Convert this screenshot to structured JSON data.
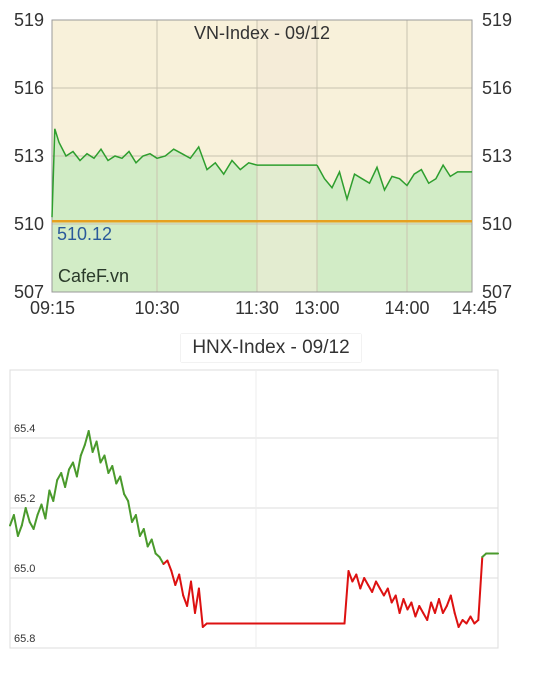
{
  "chart_data": [
    {
      "type": "line",
      "title": "VN-Index - 09/12",
      "watermark": "CafeF.vn",
      "reference_label": "510.12",
      "reference_value": 510.12,
      "x_ticks": [
        "09:15",
        "10:30",
        "11:30",
        "13:00",
        "14:00",
        "14:45"
      ],
      "y_ticks": [
        "507",
        "510",
        "513",
        "516",
        "519"
      ],
      "ylim": [
        507,
        519
      ],
      "grid": true,
      "colors": {
        "line": "#2e9e2e",
        "fill": "#d2ecc6",
        "plot_bg": "#f8f1da",
        "break_bg": "#f5ecd8",
        "reference": "#e6a020"
      },
      "series": [
        {
          "segment": "morning",
          "x": [
            "09:15",
            "09:17",
            "09:20",
            "09:25",
            "09:30",
            "09:35",
            "09:40",
            "09:45",
            "09:50",
            "09:55",
            "10:00",
            "10:05",
            "10:10",
            "10:15",
            "10:20",
            "10:25",
            "10:30",
            "10:35",
            "10:40",
            "10:45",
            "10:50",
            "10:55",
            "11:00",
            "11:05",
            "11:10",
            "11:15",
            "11:20",
            "11:25",
            "11:30"
          ],
          "y": [
            510.3,
            514.2,
            513.6,
            513.0,
            513.2,
            512.8,
            513.1,
            512.9,
            513.3,
            512.8,
            513.0,
            512.9,
            513.2,
            512.7,
            513.0,
            513.1,
            512.9,
            513.0,
            513.3,
            513.1,
            512.9,
            513.4,
            512.4,
            512.7,
            512.2,
            512.8,
            512.4,
            512.7,
            512.6
          ]
        },
        {
          "segment": "afternoon",
          "x": [
            "13:00",
            "13:05",
            "13:10",
            "13:15",
            "13:20",
            "13:25",
            "13:30",
            "13:35",
            "13:40",
            "13:45",
            "13:50",
            "13:55",
            "14:00",
            "14:05",
            "14:10",
            "14:15",
            "14:20",
            "14:25",
            "14:30",
            "14:35",
            "14:40",
            "14:45"
          ],
          "y": [
            512.6,
            512.0,
            511.6,
            512.3,
            511.1,
            512.2,
            512.0,
            511.8,
            512.5,
            511.5,
            512.1,
            512.0,
            511.7,
            512.2,
            512.4,
            511.8,
            512.0,
            512.6,
            512.1,
            512.3,
            512.3,
            512.3
          ]
        }
      ]
    },
    {
      "type": "line",
      "title": "HNX-Index - 09/12",
      "y_ticks": [
        "65.4",
        "65.2",
        "65.0",
        "65.8"
      ],
      "grid": true,
      "colors": {
        "up": "#4a9a2c",
        "down": "#dd1111",
        "grid": "#dddddd"
      },
      "series": [
        {
          "name": "",
          "color_by_reference": true,
          "reference_value": 65.05,
          "values": [
            65.15,
            65.18,
            65.12,
            65.15,
            65.2,
            65.16,
            65.14,
            65.18,
            65.21,
            65.17,
            65.25,
            65.22,
            65.28,
            65.3,
            65.26,
            65.31,
            65.33,
            65.29,
            65.35,
            65.38,
            65.42,
            65.36,
            65.39,
            65.33,
            65.35,
            65.3,
            65.32,
            65.27,
            65.29,
            65.24,
            65.22,
            65.16,
            65.18,
            65.12,
            65.14,
            65.09,
            65.11,
            65.07,
            65.06,
            65.04,
            65.05,
            65.02,
            64.98,
            65.01,
            64.95,
            64.92,
            64.99,
            64.9,
            64.97,
            64.86,
            64.87,
            64.87,
            64.87,
            64.87,
            64.87,
            64.87,
            64.87,
            64.87,
            64.87,
            64.87,
            64.87,
            64.87,
            64.87,
            64.87,
            64.87,
            64.87,
            64.87,
            64.87,
            64.87,
            64.87,
            64.87,
            64.87,
            64.87,
            64.87,
            64.87,
            64.87,
            64.87,
            64.87,
            64.87,
            64.87,
            64.87,
            64.87,
            64.87,
            64.87,
            64.87,
            64.87,
            65.02,
            64.99,
            65.01,
            64.97,
            65.0,
            64.98,
            64.96,
            64.99,
            64.97,
            64.95,
            64.97,
            64.93,
            64.95,
            64.9,
            64.94,
            64.91,
            64.93,
            64.89,
            64.92,
            64.9,
            64.88,
            64.93,
            64.9,
            64.94,
            64.9,
            64.92,
            64.95,
            64.9,
            64.86,
            64.88,
            64.87,
            64.89,
            64.87,
            64.88,
            65.06,
            65.07,
            65.07,
            65.07,
            65.07
          ]
        }
      ]
    }
  ]
}
